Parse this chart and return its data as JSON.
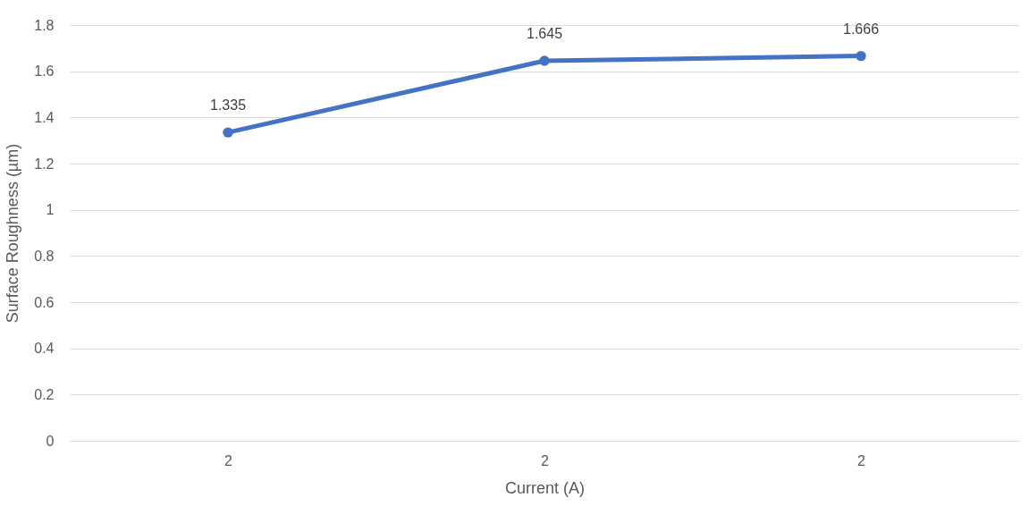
{
  "chart_data": {
    "type": "line",
    "xlabel": "Current (A)",
    "ylabel": "Surface Roughness (µm)",
    "categories": [
      "2",
      "2",
      "2"
    ],
    "series": [
      {
        "color": "#4472c4",
        "values": [
          1.335,
          1.645,
          1.666
        ]
      }
    ],
    "ylim": [
      0,
      1.8
    ],
    "yticks": [
      0,
      0.2,
      0.4,
      0.6,
      0.8,
      1,
      1.2,
      1.4,
      1.6,
      1.8
    ],
    "grid": "y",
    "marker": "circle",
    "data_labels": true
  }
}
